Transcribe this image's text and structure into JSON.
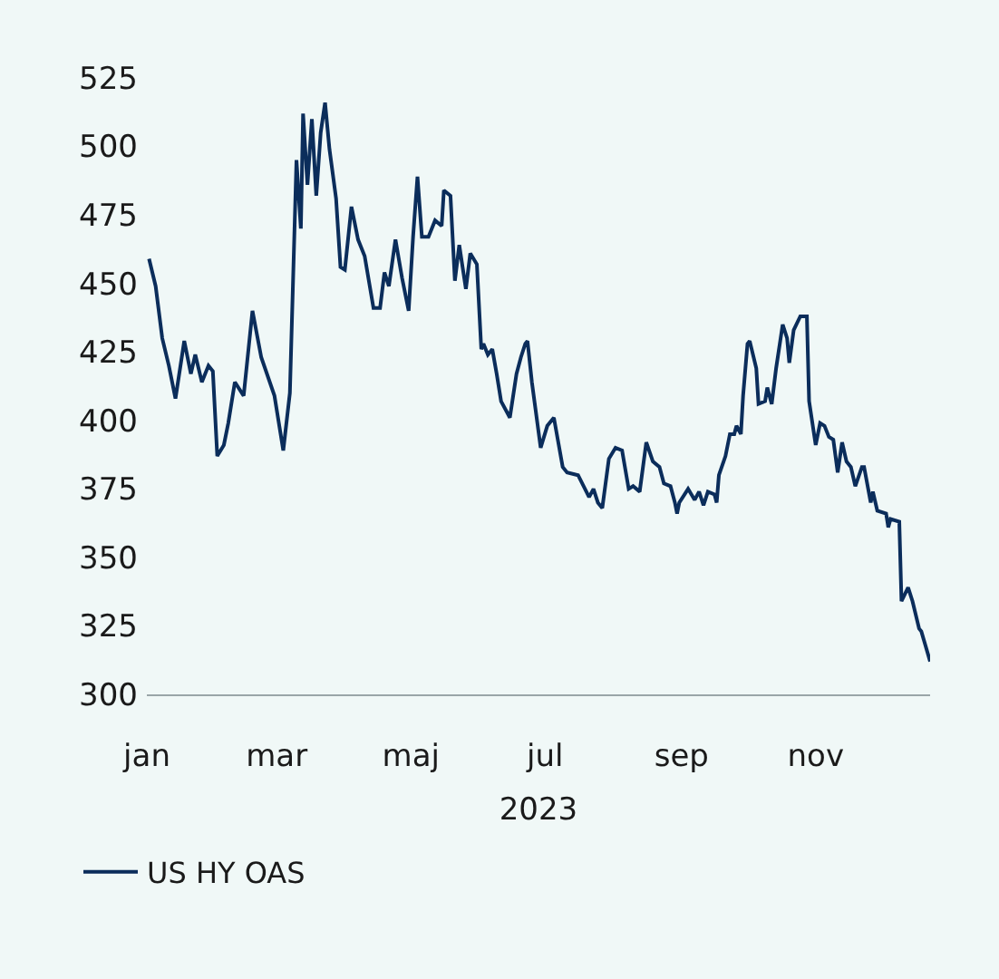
{
  "chart_data": {
    "type": "line",
    "xlabel": "2023",
    "x": [
      "2023-01-02",
      "2023-01-05",
      "2023-01-08",
      "2023-01-11",
      "2023-01-14",
      "2023-01-18",
      "2023-01-21",
      "2023-01-23",
      "2023-01-26",
      "2023-01-29",
      "2023-01-31",
      "2023-02-02",
      "2023-02-05",
      "2023-02-07",
      "2023-02-10",
      "2023-02-14",
      "2023-02-18",
      "2023-02-22",
      "2023-02-28",
      "2023-03-04",
      "2023-03-07",
      "2023-03-10",
      "2023-03-12",
      "2023-03-13",
      "2023-03-15",
      "2023-03-17",
      "2023-03-19",
      "2023-03-21",
      "2023-03-23",
      "2023-03-25",
      "2023-03-28",
      "2023-03-30",
      "2023-04-01",
      "2023-04-04",
      "2023-04-07",
      "2023-04-10",
      "2023-04-14",
      "2023-04-17",
      "2023-04-19",
      "2023-04-21",
      "2023-04-24",
      "2023-04-27",
      "2023-04-30",
      "2023-05-02",
      "2023-05-04",
      "2023-05-06",
      "2023-05-09",
      "2023-05-12",
      "2023-05-15",
      "2023-05-16",
      "2023-05-19",
      "2023-05-21",
      "2023-05-23",
      "2023-05-26",
      "2023-05-28",
      "2023-05-31",
      "2023-06-02",
      "2023-06-03",
      "2023-06-05",
      "2023-06-07",
      "2023-06-09",
      "2023-06-11",
      "2023-06-15",
      "2023-06-18",
      "2023-06-20",
      "2023-06-22",
      "2023-06-23",
      "2023-06-25",
      "2023-06-29",
      "2023-07-02",
      "2023-07-05",
      "2023-07-09",
      "2023-07-11",
      "2023-07-16",
      "2023-07-21",
      "2023-07-23",
      "2023-07-25",
      "2023-07-27",
      "2023-07-30",
      "2023-08-02",
      "2023-08-05",
      "2023-08-08",
      "2023-08-10",
      "2023-08-13",
      "2023-08-16",
      "2023-08-19",
      "2023-08-22",
      "2023-08-24",
      "2023-08-27",
      "2023-08-29",
      "2023-08-30",
      "2023-08-31",
      "2023-09-04",
      "2023-09-07",
      "2023-09-09",
      "2023-09-11",
      "2023-09-13",
      "2023-09-16",
      "2023-09-17",
      "2023-09-18",
      "2023-09-21",
      "2023-09-23",
      "2023-09-25",
      "2023-09-26",
      "2023-09-28",
      "2023-09-29",
      "2023-10-01",
      "2023-10-02",
      "2023-10-05",
      "2023-10-06",
      "2023-10-09",
      "2023-10-10",
      "2023-10-12",
      "2023-10-14",
      "2023-10-17",
      "2023-10-19",
      "2023-10-20",
      "2023-10-22",
      "2023-10-25",
      "2023-10-28",
      "2023-10-29",
      "2023-11-01",
      "2023-11-03",
      "2023-11-05",
      "2023-11-07",
      "2023-11-09",
      "2023-11-11",
      "2023-11-13",
      "2023-11-15",
      "2023-11-17",
      "2023-11-19",
      "2023-11-22",
      "2023-11-23",
      "2023-11-26",
      "2023-11-27",
      "2023-11-29",
      "2023-12-03",
      "2023-12-04",
      "2023-12-05",
      "2023-12-09",
      "2023-12-10",
      "2023-12-13",
      "2023-12-15",
      "2023-12-18",
      "2023-12-19",
      "2023-12-23"
    ],
    "series": [
      {
        "name": "US HY OAS",
        "color": "#0b2d5b",
        "values": [
          459,
          449,
          430,
          420,
          408,
          429,
          417,
          424,
          414,
          420,
          418,
          387,
          391,
          399,
          414,
          409,
          440,
          423,
          409,
          389,
          410,
          495,
          470,
          512,
          486,
          510,
          482,
          505,
          516,
          499,
          481,
          456,
          455,
          478,
          466,
          460,
          441,
          441,
          454,
          449,
          466,
          452,
          440,
          467,
          489,
          467,
          467,
          473,
          471,
          484,
          482,
          451,
          464,
          448,
          461,
          457,
          426,
          428,
          424,
          426,
          417,
          407,
          401,
          417,
          423,
          428,
          429,
          414,
          390,
          398,
          401,
          383,
          381,
          380,
          372,
          375,
          370,
          368,
          386,
          390,
          389,
          375,
          376,
          374,
          392,
          385,
          383,
          377,
          376,
          370,
          366,
          370,
          375,
          371,
          374,
          369,
          374,
          373,
          370,
          380,
          387,
          395,
          395,
          398,
          395,
          409,
          428,
          429,
          419,
          406,
          407,
          412,
          406,
          419,
          435,
          430,
          421,
          433,
          438,
          438,
          407,
          391,
          399,
          398,
          394,
          393,
          381,
          392,
          385,
          383,
          376,
          383,
          383,
          370,
          374,
          367,
          366,
          361,
          364,
          363,
          334,
          339,
          334,
          324,
          323,
          312
        ]
      }
    ],
    "xlim": [
      "2023-01-01",
      "2023-12-23"
    ],
    "xticks": [
      {
        "value": "2023-01-01",
        "label": "jan"
      },
      {
        "value": "2023-03-01",
        "label": "mar"
      },
      {
        "value": "2023-05-01",
        "label": "maj"
      },
      {
        "value": "2023-07-01",
        "label": "jul"
      },
      {
        "value": "2023-09-01",
        "label": "sep"
      },
      {
        "value": "2023-11-01",
        "label": "nov"
      }
    ],
    "ylim": [
      300,
      525
    ],
    "yticks": [
      300,
      325,
      350,
      375,
      400,
      425,
      450,
      475,
      500,
      525
    ],
    "grid": false,
    "legend": "bottom left",
    "marker": "none",
    "line_style": "solid"
  }
}
